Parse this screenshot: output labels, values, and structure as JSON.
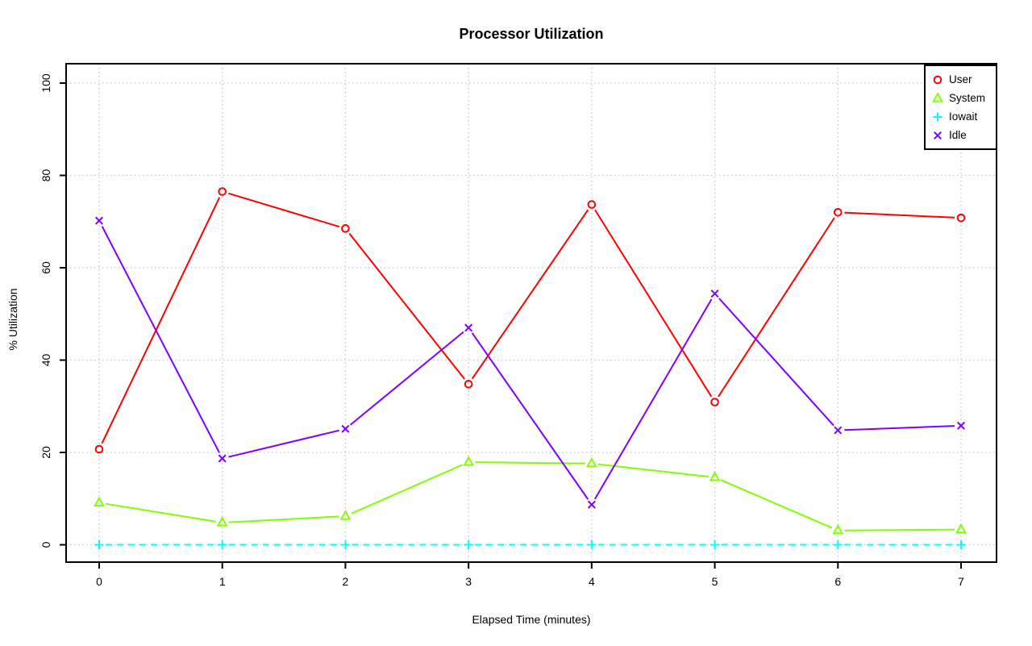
{
  "chart_data": {
    "type": "line",
    "title": "Processor Utilization",
    "xlabel": "Elapsed Time (minutes)",
    "ylabel": "% Utilization",
    "x": [
      0,
      1,
      2,
      3,
      4,
      5,
      6,
      7
    ],
    "x_ticks": [
      "0",
      "1",
      "2",
      "3",
      "4",
      "5",
      "6",
      "7"
    ],
    "y_ticks": [
      "0",
      "20",
      "40",
      "60",
      "80",
      "100"
    ],
    "y_tick_values": [
      0,
      20,
      40,
      60,
      80,
      100
    ],
    "xlim": [
      0,
      7
    ],
    "ylim": [
      0,
      100
    ],
    "grid": "dotted",
    "grid_color": "#c6c6c6",
    "frame_color": "#000000",
    "legend_position": "top-right",
    "series": [
      {
        "name": "User",
        "color": "#ff0000",
        "marker": "circle",
        "linestyle": "solid",
        "values": [
          20.7,
          76.5,
          68.5,
          34.8,
          73.7,
          30.9,
          72.0,
          70.8
        ]
      },
      {
        "name": "System",
        "color": "#80ff00",
        "marker": "triangle",
        "linestyle": "solid",
        "values": [
          9.1,
          4.8,
          6.2,
          17.9,
          17.6,
          14.6,
          3.1,
          3.3
        ]
      },
      {
        "name": "Iowait",
        "color": "#00ffff",
        "marker": "plus",
        "linestyle": "dashed",
        "values": [
          0,
          0,
          0,
          0,
          0,
          0,
          0,
          0
        ]
      },
      {
        "name": "Idle",
        "color": "#8000ff",
        "marker": "x",
        "linestyle": "solid",
        "values": [
          70.2,
          18.7,
          25.1,
          47.0,
          8.7,
          54.4,
          24.8,
          25.8
        ]
      }
    ]
  }
}
